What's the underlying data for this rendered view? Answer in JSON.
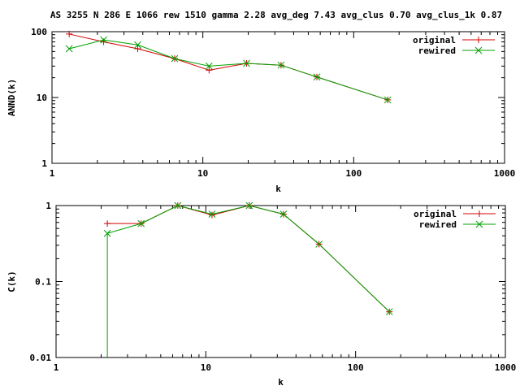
{
  "title": "AS 3255 N 286 E 1066 rew 1510 gamma 2.28 avg_deg 7.43 avg_clus 0.70 avg_clus_1k 0.87",
  "colors": {
    "original": "#d40000",
    "rewired": "#00a000",
    "axis": "#000000"
  },
  "chart_data": [
    {
      "type": "line",
      "title": "",
      "xlabel": "k",
      "ylabel": "ANND(k)",
      "xscale": "log",
      "yscale": "log",
      "xlim": [
        1,
        1000
      ],
      "ylim": [
        1,
        100
      ],
      "xticks": [
        1,
        10,
        100,
        1000
      ],
      "xtick_labels": [
        "1",
        "10",
        "100",
        "1000"
      ],
      "yticks": [
        1,
        10,
        100
      ],
      "ytick_labels": [
        "1",
        "10",
        "100"
      ],
      "legend_position": "top-right",
      "series": [
        {
          "name": "original",
          "marker": "plus",
          "x": [
            1.3,
            2.2,
            3.7,
            6.5,
            11,
            19.5,
            33,
            57,
            168
          ],
          "y": [
            92,
            70,
            55,
            39,
            26,
            33,
            31,
            20.5,
            9.2
          ]
        },
        {
          "name": "rewired",
          "marker": "cross",
          "x": [
            1.3,
            2.2,
            3.7,
            6.5,
            11,
            19.5,
            33,
            57,
            168
          ],
          "y": [
            55,
            75,
            63,
            39,
            30,
            33,
            31,
            20.5,
            9.2
          ]
        }
      ]
    },
    {
      "type": "line",
      "title": "",
      "xlabel": "k",
      "ylabel": "C(k)",
      "xscale": "log",
      "yscale": "log",
      "xlim": [
        1,
        1000
      ],
      "ylim": [
        0.01,
        1
      ],
      "xticks": [
        1,
        10,
        100,
        1000
      ],
      "xtick_labels": [
        "1",
        "10",
        "100",
        "1000"
      ],
      "yticks": [
        0.01,
        0.1,
        1
      ],
      "ytick_labels": [
        "0.01",
        "0.1",
        "1"
      ],
      "legend_position": "top-right",
      "series": [
        {
          "name": "original",
          "marker": "plus",
          "x": [
            2.2,
            3.7,
            6.5,
            11,
            19.5,
            33,
            57,
            168
          ],
          "y": [
            0.58,
            0.58,
            1.0,
            0.75,
            1.0,
            0.77,
            0.31,
            0.04
          ]
        },
        {
          "name": "rewired",
          "marker": "cross",
          "x": [
            2.2,
            2.2,
            3.7,
            6.5,
            11,
            19.5,
            33,
            57,
            168
          ],
          "y": [
            0.01,
            0.43,
            0.58,
            1.0,
            0.77,
            1.0,
            0.77,
            0.31,
            0.04
          ]
        }
      ]
    }
  ]
}
